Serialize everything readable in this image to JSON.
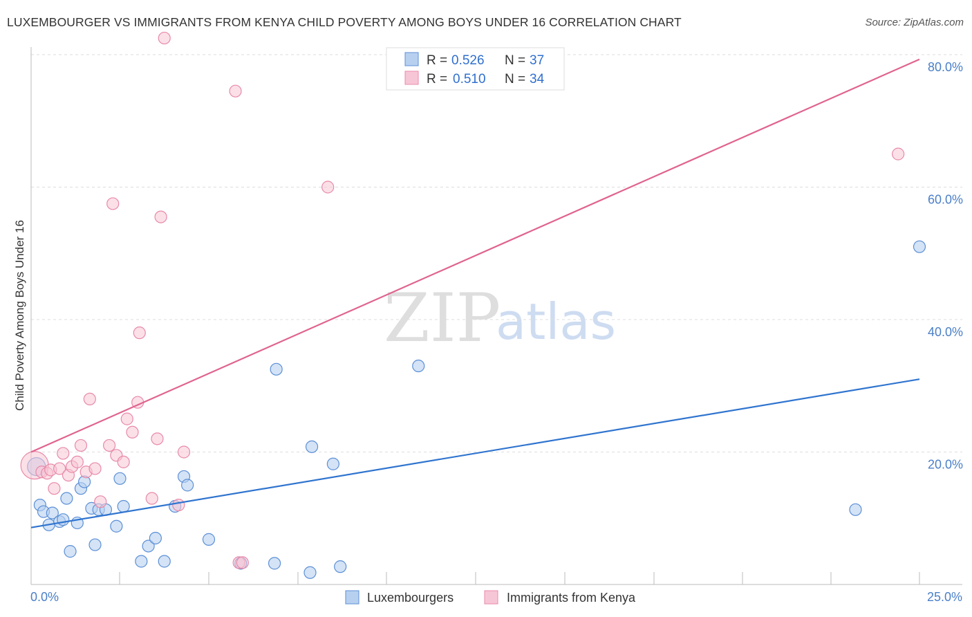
{
  "title": "LUXEMBOURGER VS IMMIGRANTS FROM KENYA CHILD POVERTY AMONG BOYS UNDER 16 CORRELATION CHART",
  "source": "Source: ZipAtlas.com",
  "watermark": {
    "zip": "ZIP",
    "atlas": "atlas"
  },
  "chart_data": {
    "type": "scatter",
    "title": "LUXEMBOURGER VS IMMIGRANTS FROM KENYA CHILD POVERTY AMONG BOYS UNDER 16 CORRELATION CHART",
    "ylabel": "Child Poverty Among Boys Under 16",
    "xlabel": "",
    "xlim": [
      0,
      25
    ],
    "ylim": [
      0,
      80
    ],
    "x_tick_labels": {
      "min": "0.0%",
      "max": "25.0%"
    },
    "y_ticks": [
      20,
      40,
      60,
      80
    ],
    "y_tick_labels": [
      "20.0%",
      "40.0%",
      "60.0%",
      "80.0%"
    ],
    "grid": true,
    "legend": {
      "placement": "top-center",
      "entries": [
        {
          "r_label": "R = ",
          "r": "0.526",
          "n_label": "N = ",
          "n": "37"
        },
        {
          "r_label": "R = ",
          "r": "0.510",
          "n_label": "N = ",
          "n": "34"
        }
      ]
    },
    "series": [
      {
        "name": "Luxembourgers",
        "color": "#5b8fd6",
        "fill": "#b8d0f0",
        "trend_color": "#2f74cf",
        "trend": {
          "x0": 0,
          "y0": 8.6,
          "x1": 25,
          "y1": 31.0
        },
        "points": [
          [
            0.15,
            17.8
          ],
          [
            0.25,
            12.0
          ],
          [
            0.35,
            11.0
          ],
          [
            0.5,
            9.0
          ],
          [
            0.6,
            10.8
          ],
          [
            0.8,
            9.5
          ],
          [
            0.9,
            9.8
          ],
          [
            1.0,
            13.0
          ],
          [
            1.1,
            5.0
          ],
          [
            1.3,
            9.3
          ],
          [
            1.4,
            14.5
          ],
          [
            1.5,
            15.5
          ],
          [
            1.7,
            11.5
          ],
          [
            1.8,
            6.0
          ],
          [
            1.9,
            11.3
          ],
          [
            2.1,
            11.3
          ],
          [
            2.4,
            8.8
          ],
          [
            2.5,
            16.0
          ],
          [
            2.6,
            11.8
          ],
          [
            3.1,
            3.5
          ],
          [
            3.3,
            5.8
          ],
          [
            3.5,
            7.0
          ],
          [
            3.75,
            3.5
          ],
          [
            4.05,
            11.8
          ],
          [
            4.3,
            16.3
          ],
          [
            4.4,
            15.0
          ],
          [
            5.0,
            6.8
          ],
          [
            5.9,
            3.2
          ],
          [
            6.85,
            3.2
          ],
          [
            6.9,
            32.5
          ],
          [
            7.85,
            1.8
          ],
          [
            7.9,
            20.8
          ],
          [
            8.5,
            18.2
          ],
          [
            8.7,
            2.7
          ],
          [
            10.9,
            33.0
          ],
          [
            23.2,
            11.3
          ],
          [
            25.0,
            51.0
          ]
        ]
      },
      {
        "name": "Immigrants from Kenya",
        "color": "#e889a8",
        "fill": "#f7c6d6",
        "trend_color": "#e0638f",
        "trend": {
          "x0": 0,
          "y0": 20.0,
          "x1": 25,
          "y1": 79.3
        },
        "points": [
          [
            0.1,
            18.0
          ],
          [
            0.3,
            17.0
          ],
          [
            0.45,
            16.8
          ],
          [
            0.55,
            17.3
          ],
          [
            0.65,
            14.5
          ],
          [
            0.8,
            17.5
          ],
          [
            0.9,
            19.8
          ],
          [
            1.05,
            16.5
          ],
          [
            1.15,
            17.8
          ],
          [
            1.3,
            18.5
          ],
          [
            1.4,
            21.0
          ],
          [
            1.55,
            17.0
          ],
          [
            1.65,
            28.0
          ],
          [
            1.8,
            17.5
          ],
          [
            1.95,
            12.5
          ],
          [
            2.2,
            21.0
          ],
          [
            2.3,
            57.5
          ],
          [
            2.4,
            19.5
          ],
          [
            2.6,
            18.5
          ],
          [
            2.7,
            25.0
          ],
          [
            2.85,
            23.0
          ],
          [
            3.0,
            27.5
          ],
          [
            3.05,
            38.0
          ],
          [
            3.4,
            13.0
          ],
          [
            3.55,
            22.0
          ],
          [
            3.65,
            55.5
          ],
          [
            3.75,
            82.5
          ],
          [
            4.15,
            12.0
          ],
          [
            4.3,
            20.0
          ],
          [
            5.75,
            74.5
          ],
          [
            5.85,
            3.3
          ],
          [
            5.95,
            3.3
          ],
          [
            8.35,
            60.0
          ],
          [
            24.4,
            65.0
          ]
        ]
      }
    ]
  }
}
